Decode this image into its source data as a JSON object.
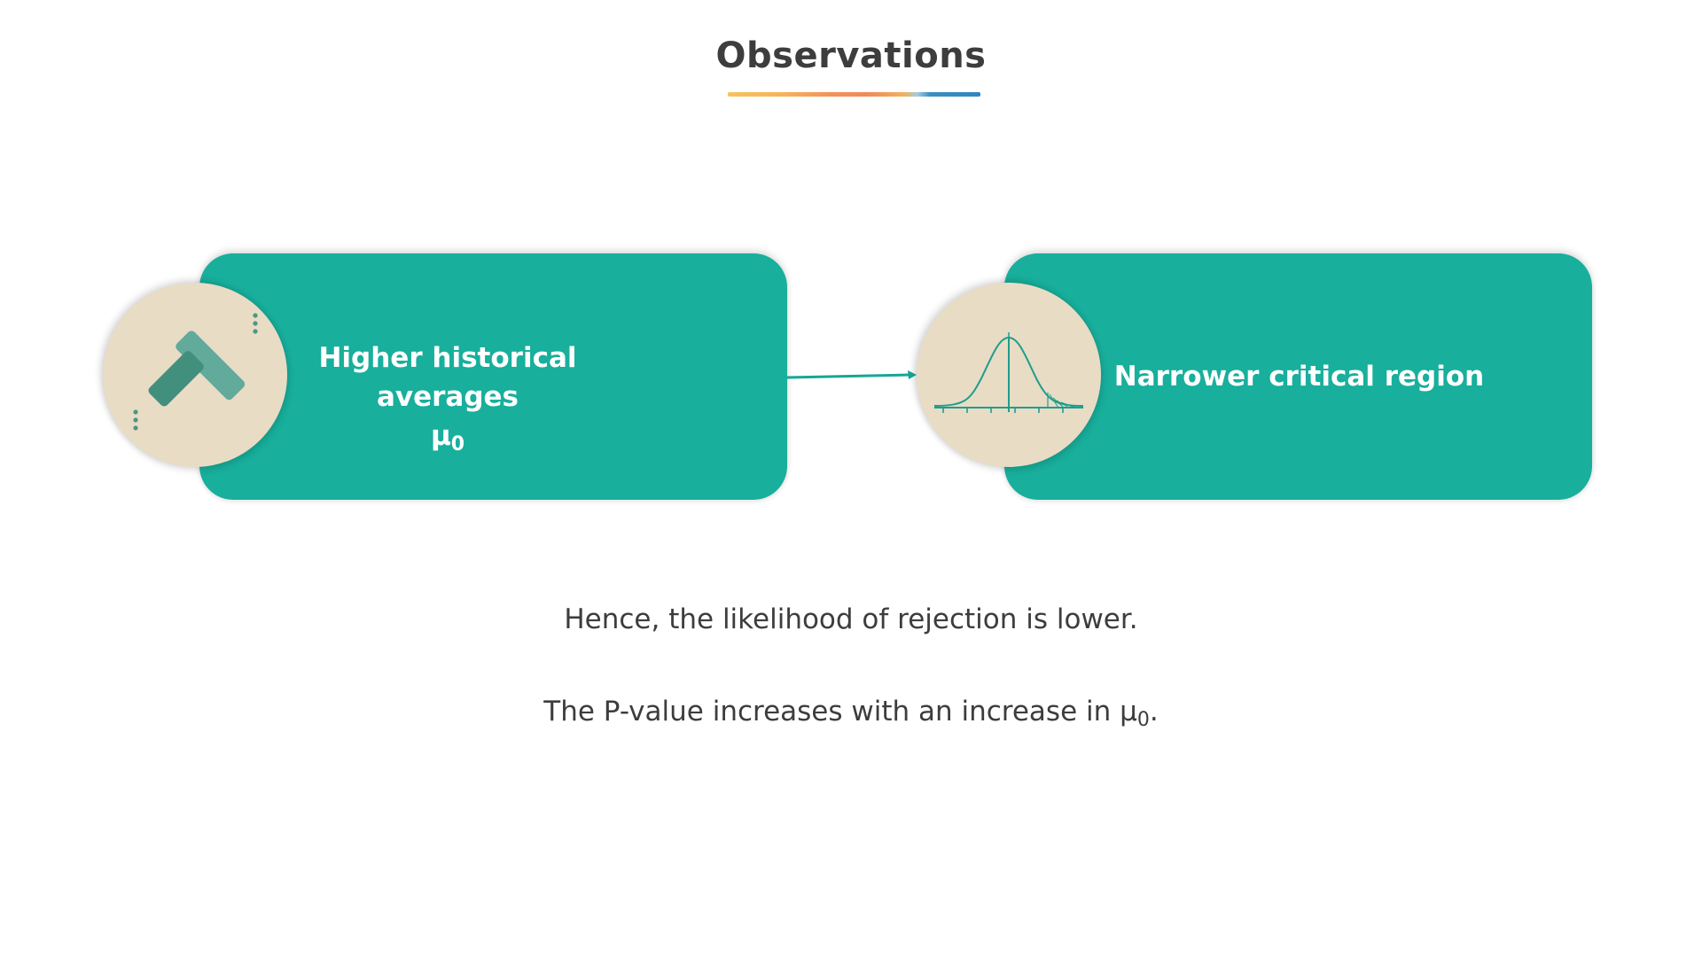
{
  "title": "Observations",
  "nodes": [
    {
      "label": "Higher historical averages",
      "symbol": "μ",
      "subscript": "0",
      "icon": "chevron-up-icon"
    },
    {
      "label": "Narrower critical region",
      "icon": "normal-distribution-icon"
    }
  ],
  "connector": "arrow-right",
  "conclusions": {
    "line1": "Hence, the likelihood of rejection is lower.",
    "line2_text": "The P-value increases with an increase in μ",
    "line2_sub": "0",
    "line2_end": "."
  },
  "colors": {
    "card": "#18af9c",
    "badge": "#e8dcc5",
    "text": "#3d3d3d",
    "icon_dark": "#3f8c7b",
    "icon_light": "#62aa9c"
  }
}
